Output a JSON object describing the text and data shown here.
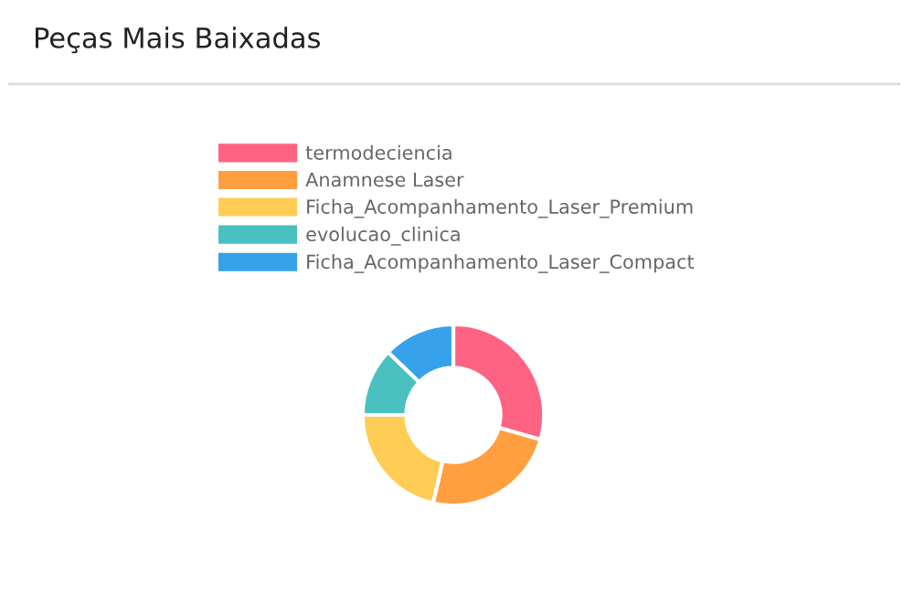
{
  "chart_data": {
    "type": "donut",
    "title": "Peças Mais Baixadas",
    "categories": [
      "termodeciencia",
      "Anamnese Laser",
      "Ficha_Acompanhamento_Laser_Premium",
      "evolucao_clinica",
      "Ficha_Acompanhamento_Laser_Compact"
    ],
    "values": [
      29.4,
      24.2,
      21.4,
      12.2,
      12.8
    ],
    "colors": [
      "#ff6384",
      "#ff9f40",
      "#ffcd56",
      "#4bc0c0",
      "#36a2eb"
    ],
    "legend": "top"
  }
}
